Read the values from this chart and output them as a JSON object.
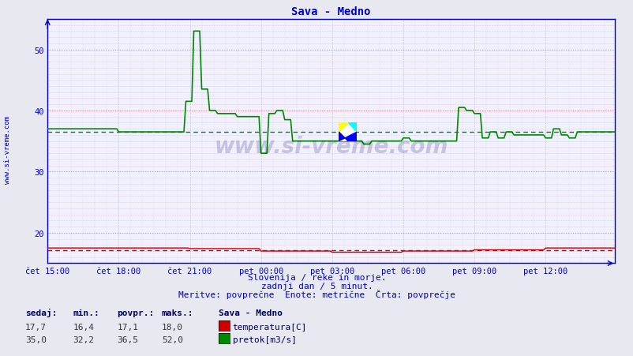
{
  "title": "Sava - Medno",
  "background_color": "#e8e8f0",
  "plot_bg_color": "#f0f0ff",
  "grid_color_dotted": "#ddaaaa",
  "grid_color_major_h": "#ff8888",
  "grid_color_v": "#aaaacc",
  "xlabel_color": "#0000cc",
  "title_color": "#0000cc",
  "watermark": "www.si-vreme.com",
  "watermark_color": "#000066",
  "sidebar_color": "#0000aa",
  "subtitle1": "Slovenija / reke in morje.",
  "subtitle2": "zadnji dan / 5 minut.",
  "subtitle3": "Meritve: povprečne  Enote: metrične  Črta: povprečje",
  "y_min": 15,
  "y_max": 55,
  "yticks": [
    20,
    30,
    40,
    50
  ],
  "x_ticks_labels": [
    "čet 15:00",
    "čet 18:00",
    "čet 21:00",
    "pet 00:00",
    "pet 03:00",
    "pet 06:00",
    "pet 09:00",
    "pet 12:00"
  ],
  "n_points": 288,
  "temp_avg": 17.1,
  "temp_color": "#cc0000",
  "flow_avg": 36.5,
  "flow_color": "#008800",
  "temp_sedaj": "17,7",
  "temp_min": "16,4",
  "temp_povpr": "17,1",
  "temp_maks": "18,0",
  "flow_sedaj": "35,0",
  "flow_min": "32,2",
  "flow_povpr": "36,5",
  "flow_maks": "52,0",
  "header_labels": [
    "sedaj:",
    "min.:",
    "povpr.:",
    "maks.:"
  ],
  "station_name": "Sava - Medno",
  "legend_temp": "temperatura[C]",
  "legend_flow": "pretok[m3/s]"
}
